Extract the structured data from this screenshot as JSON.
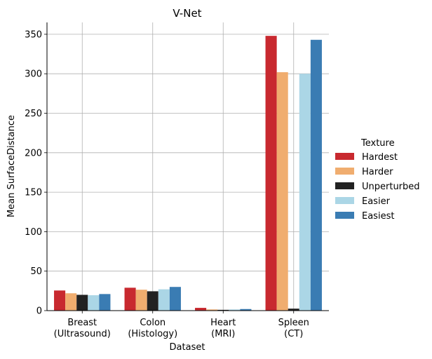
{
  "chart_data": {
    "type": "bar",
    "title": "V-Net",
    "xlabel": "Dataset",
    "ylabel": "Mean SurfaceDistance",
    "categories": [
      "Breast\n(Ultrasound)",
      "Colon\n(Histology)",
      "Heart\n(MRI)",
      "Spleen\n(CT)"
    ],
    "ylim": [
      0,
      365
    ],
    "yticks": [
      0,
      50,
      100,
      150,
      200,
      250,
      300,
      350
    ],
    "grid": true,
    "legend": {
      "title": "Texture",
      "placement": "right"
    },
    "series": [
      {
        "name": "Hardest",
        "color": "#c8292f",
        "values": [
          25.5,
          29,
          3.5,
          348
        ]
      },
      {
        "name": "Harder",
        "color": "#f0ad6f",
        "values": [
          22,
          26.5,
          1.5,
          302
        ]
      },
      {
        "name": "Unperturbed",
        "color": "#222222",
        "values": [
          20,
          24.5,
          1,
          2.5
        ]
      },
      {
        "name": "Easier",
        "color": "#abd6e6",
        "values": [
          19.5,
          27,
          1.5,
          300
        ]
      },
      {
        "name": "Easiest",
        "color": "#3a7cb3",
        "values": [
          21,
          30,
          2,
          343
        ]
      }
    ]
  }
}
